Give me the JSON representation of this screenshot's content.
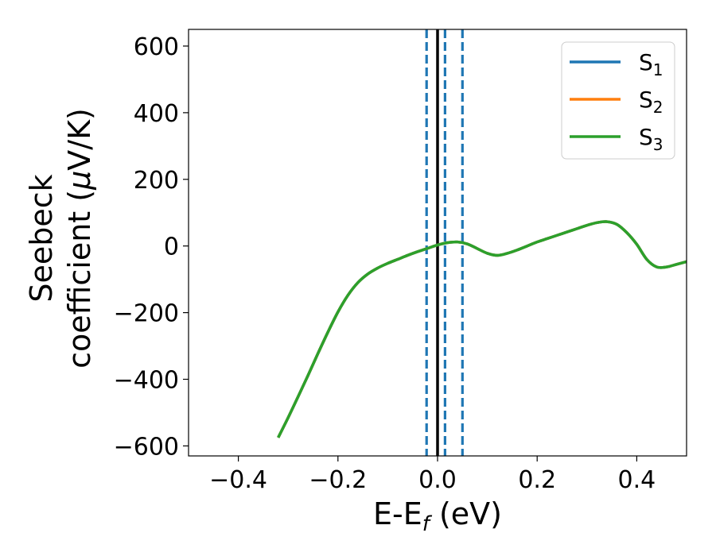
{
  "chart_data": {
    "type": "line",
    "title": "",
    "xlabel": "E-E",
    "xlabel_sub": "f",
    "xlabel_unit": " (eV)",
    "ylabel_line1": "Seebeck",
    "ylabel_line2_text": "coefficient  (",
    "ylabel_line2_mu": "μ",
    "ylabel_line2_unit": "V/K)",
    "xlim": [
      -0.5,
      0.5
    ],
    "ylim": [
      -630,
      650
    ],
    "xticks": [
      -0.4,
      -0.2,
      0.0,
      0.2,
      0.4
    ],
    "xtick_labels": [
      "−0.4",
      "−0.2",
      "0.0",
      "0.2",
      "0.4"
    ],
    "yticks": [
      -600,
      -400,
      -200,
      0,
      200,
      400,
      600
    ],
    "ytick_labels": [
      "−600",
      "−400",
      "−200",
      "0",
      "200",
      "400",
      "600"
    ],
    "grid": false,
    "legend_position": "top-right",
    "x": [
      -0.32,
      -0.3,
      -0.28,
      -0.26,
      -0.24,
      -0.22,
      -0.2,
      -0.18,
      -0.16,
      -0.14,
      -0.12,
      -0.1,
      -0.08,
      -0.06,
      -0.04,
      -0.02,
      0.0,
      0.02,
      0.04,
      0.06,
      0.08,
      0.1,
      0.12,
      0.14,
      0.16,
      0.18,
      0.2,
      0.22,
      0.24,
      0.26,
      0.28,
      0.3,
      0.32,
      0.34,
      0.36,
      0.38,
      0.4,
      0.42,
      0.44,
      0.46,
      0.48,
      0.5
    ],
    "series": [
      {
        "name": "S",
        "sub": "1",
        "color": "#1f77b4",
        "values": [
          -575,
          -515,
          -452,
          -388,
          -322,
          -258,
          -198,
          -148,
          -110,
          -84,
          -66,
          -52,
          -40,
          -28,
          -17,
          -7,
          3,
          10,
          12,
          6,
          -8,
          -22,
          -28,
          -22,
          -12,
          0,
          12,
          22,
          32,
          42,
          52,
          62,
          70,
          73,
          65,
          40,
          5,
          -40,
          -63,
          -63,
          -55,
          -47
        ]
      },
      {
        "name": "S",
        "sub": "2",
        "color": "#ff7f0e",
        "values": [
          -575,
          -515,
          -452,
          -388,
          -322,
          -258,
          -198,
          -148,
          -110,
          -84,
          -66,
          -52,
          -40,
          -28,
          -17,
          -7,
          3,
          10,
          12,
          6,
          -8,
          -22,
          -28,
          -22,
          -12,
          0,
          12,
          22,
          32,
          42,
          52,
          62,
          70,
          73,
          65,
          40,
          5,
          -40,
          -63,
          -63,
          -55,
          -47
        ]
      },
      {
        "name": "S",
        "sub": "3",
        "color": "#2ca02c",
        "values": [
          -575,
          -515,
          -452,
          -388,
          -322,
          -258,
          -198,
          -148,
          -110,
          -84,
          -66,
          -52,
          -40,
          -28,
          -17,
          -7,
          3,
          10,
          12,
          6,
          -8,
          -22,
          -28,
          -22,
          -12,
          0,
          12,
          22,
          32,
          42,
          52,
          62,
          70,
          73,
          65,
          40,
          5,
          -40,
          -63,
          -63,
          -55,
          -47
        ]
      }
    ],
    "vertical_lines": [
      {
        "x": 0.0,
        "style": "solid",
        "color": "#000000"
      },
      {
        "x": -0.022,
        "style": "dashed",
        "color": "#1f77b4"
      },
      {
        "x": 0.015,
        "style": "dashed",
        "color": "#1f77b4"
      },
      {
        "x": 0.05,
        "style": "dashed",
        "color": "#1f77b4"
      }
    ]
  }
}
